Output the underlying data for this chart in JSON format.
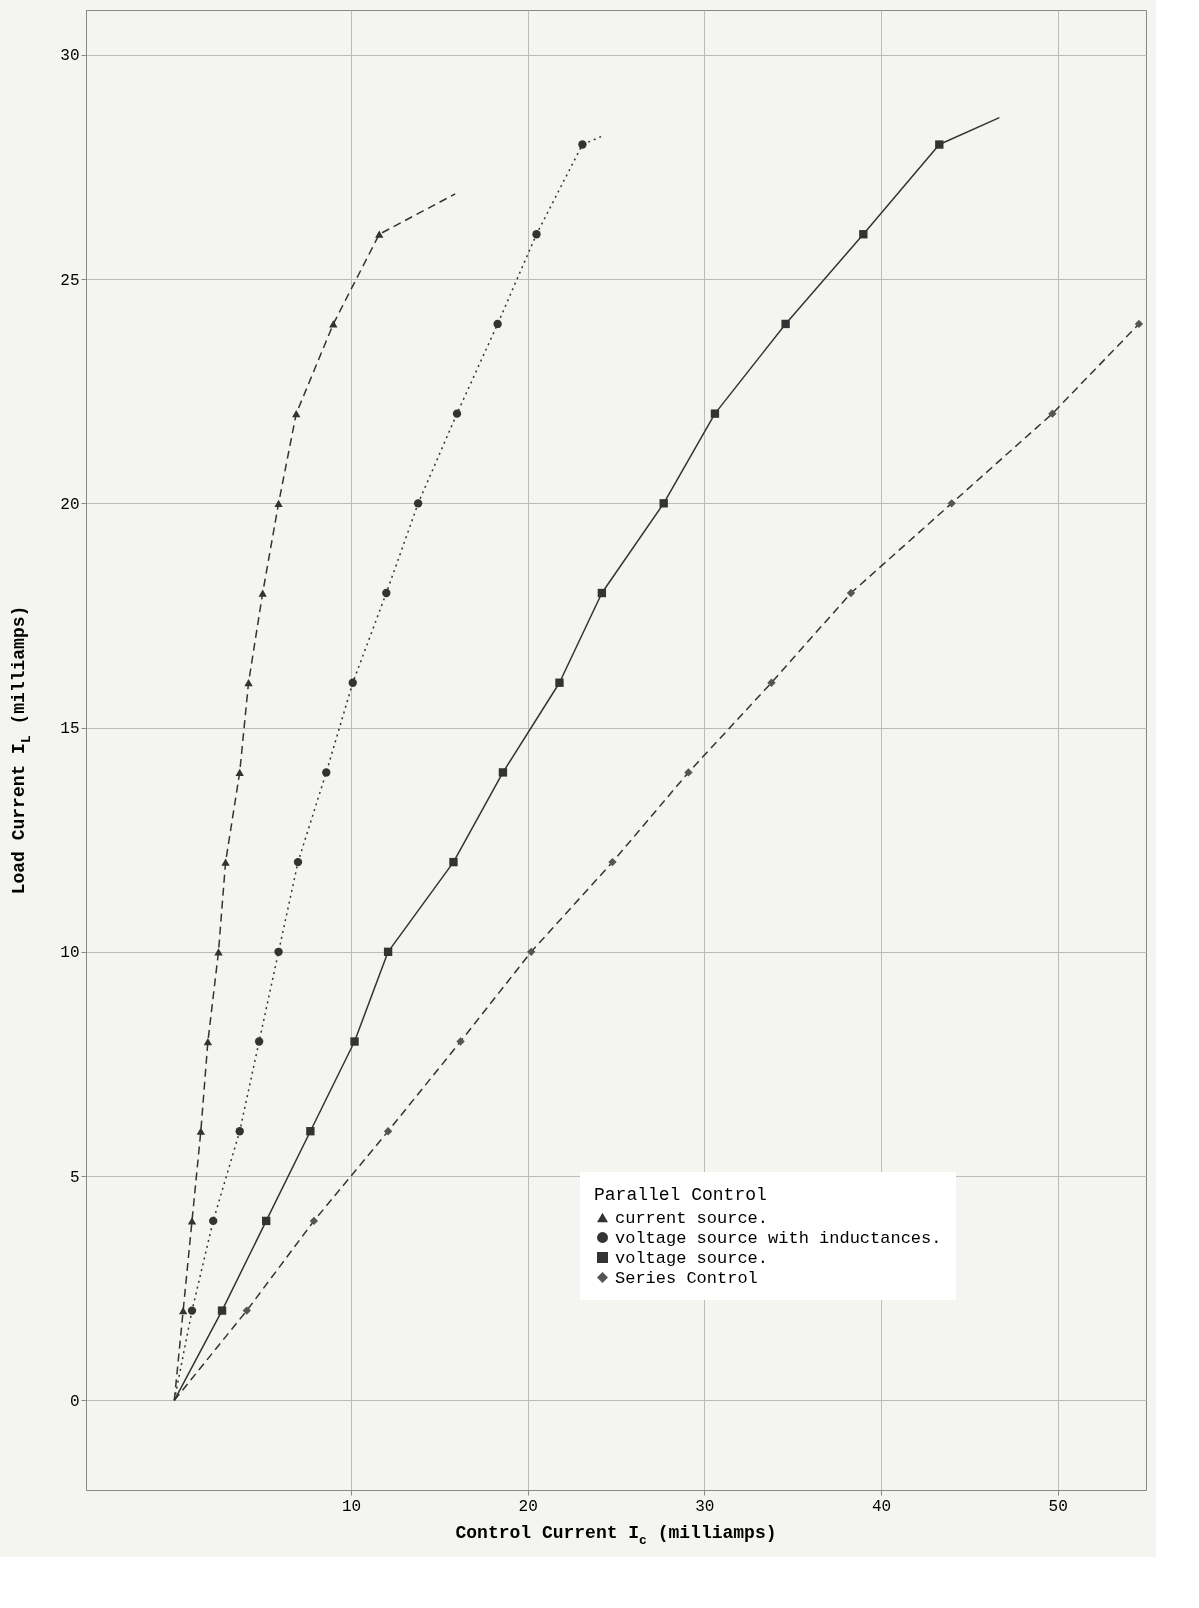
{
  "chart_data": {
    "type": "line",
    "xlabel": "Control Current I$_{c}$ (milliamps)",
    "ylabel": "Load Current I$_{L}$ (milliamps)",
    "legend_title": "Parallel Control",
    "legend": "bottom right",
    "grid": true,
    "xlim": [
      -5,
      55
    ],
    "ylim": [
      -2,
      31
    ],
    "xticks": [
      10,
      20,
      30,
      40,
      50
    ],
    "yticks": [
      0,
      5,
      10,
      15,
      20,
      25,
      30
    ],
    "series": [
      {
        "type": "line",
        "color": "#333333",
        "line_style": "dashed",
        "marker": "none",
        "x": [
          0,
          0.5,
          1.0,
          1.5,
          1.9,
          2.5,
          2.9,
          3.7,
          4.2,
          5.0,
          5.9,
          6.9,
          9.0,
          11.6,
          15.9
        ],
        "values": [
          0,
          2,
          4,
          6,
          8,
          10,
          12,
          14,
          16,
          18,
          20,
          22,
          24,
          26,
          26.9
        ]
      },
      {
        "type": "line",
        "color": "#333333",
        "line_style": "dotted",
        "marker": "none",
        "x": [
          0,
          1.0,
          2.2,
          3.7,
          4.8,
          5.9,
          7.0,
          8.6,
          10.1,
          12.0,
          13.8,
          16.0,
          18.3,
          20.5,
          23.1,
          24.3
        ],
        "values": [
          0,
          2,
          4,
          6,
          8,
          10,
          12,
          14,
          16,
          18,
          20,
          22,
          24,
          26,
          28,
          28.2
        ]
      },
      {
        "type": "line",
        "color": "#333333",
        "line_style": "solid",
        "marker": "none",
        "x": [
          0,
          2.7,
          5.2,
          7.7,
          10.2,
          12.1,
          15.8,
          18.6,
          21.8,
          24.2,
          27.7,
          30.6,
          34.6,
          39.0,
          43.3,
          46.7
        ],
        "values": [
          0,
          2,
          4,
          6,
          8,
          10,
          12,
          14,
          16,
          18,
          20,
          22,
          24,
          26,
          28,
          28.6
        ]
      },
      {
        "type": "line",
        "color": "#333333",
        "line_style": "dashed",
        "marker": "none",
        "x": [
          0,
          4.1,
          7.9,
          12.1,
          16.2,
          20.2,
          24.8,
          29.1,
          33.8,
          38.3,
          44.0,
          49.7,
          54.6
        ],
        "values": [
          0,
          2,
          4,
          6,
          8,
          10,
          12,
          14,
          16,
          18,
          20,
          22,
          24
        ]
      },
      {
        "type": "scatter",
        "name": "current source.",
        "color": "#333333",
        "marker": "triangle",
        "x": [
          0.5,
          1.0,
          1.5,
          1.9,
          2.5,
          2.9,
          3.7,
          4.2,
          5.0,
          5.9,
          6.9,
          9.0,
          11.6
        ],
        "values": [
          2,
          4,
          6,
          8,
          10,
          12,
          14,
          16,
          18,
          20,
          22,
          24,
          26
        ]
      },
      {
        "type": "scatter",
        "name": "voltage source with inductances.",
        "color": "#333333",
        "marker": "circle",
        "x": [
          1.0,
          2.2,
          3.7,
          4.8,
          5.9,
          7.0,
          8.6,
          10.1,
          12.0,
          13.8,
          16.0,
          18.3,
          20.5,
          23.1
        ],
        "values": [
          2,
          4,
          6,
          8,
          10,
          12,
          14,
          16,
          18,
          20,
          22,
          24,
          26,
          28
        ]
      },
      {
        "type": "scatter",
        "name": "voltage source.",
        "color": "#333333",
        "marker": "square",
        "x": [
          2.7,
          5.2,
          7.7,
          10.2,
          12.1,
          15.8,
          18.6,
          21.8,
          24.2,
          27.7,
          30.6,
          34.6,
          39.0,
          43.3
        ],
        "values": [
          2,
          4,
          6,
          8,
          10,
          12,
          14,
          16,
          18,
          20,
          22,
          24,
          26,
          28
        ]
      },
      {
        "type": "scatter",
        "name": "Series Control",
        "color": "#555555",
        "marker": "diamond",
        "x": [
          4.1,
          7.9,
          12.1,
          16.2,
          20.2,
          24.8,
          29.1,
          33.8,
          38.3,
          44.0,
          49.7,
          54.6
        ],
        "values": [
          2,
          4,
          6,
          8,
          10,
          12,
          14,
          16,
          18,
          20,
          22,
          24
        ]
      }
    ]
  }
}
